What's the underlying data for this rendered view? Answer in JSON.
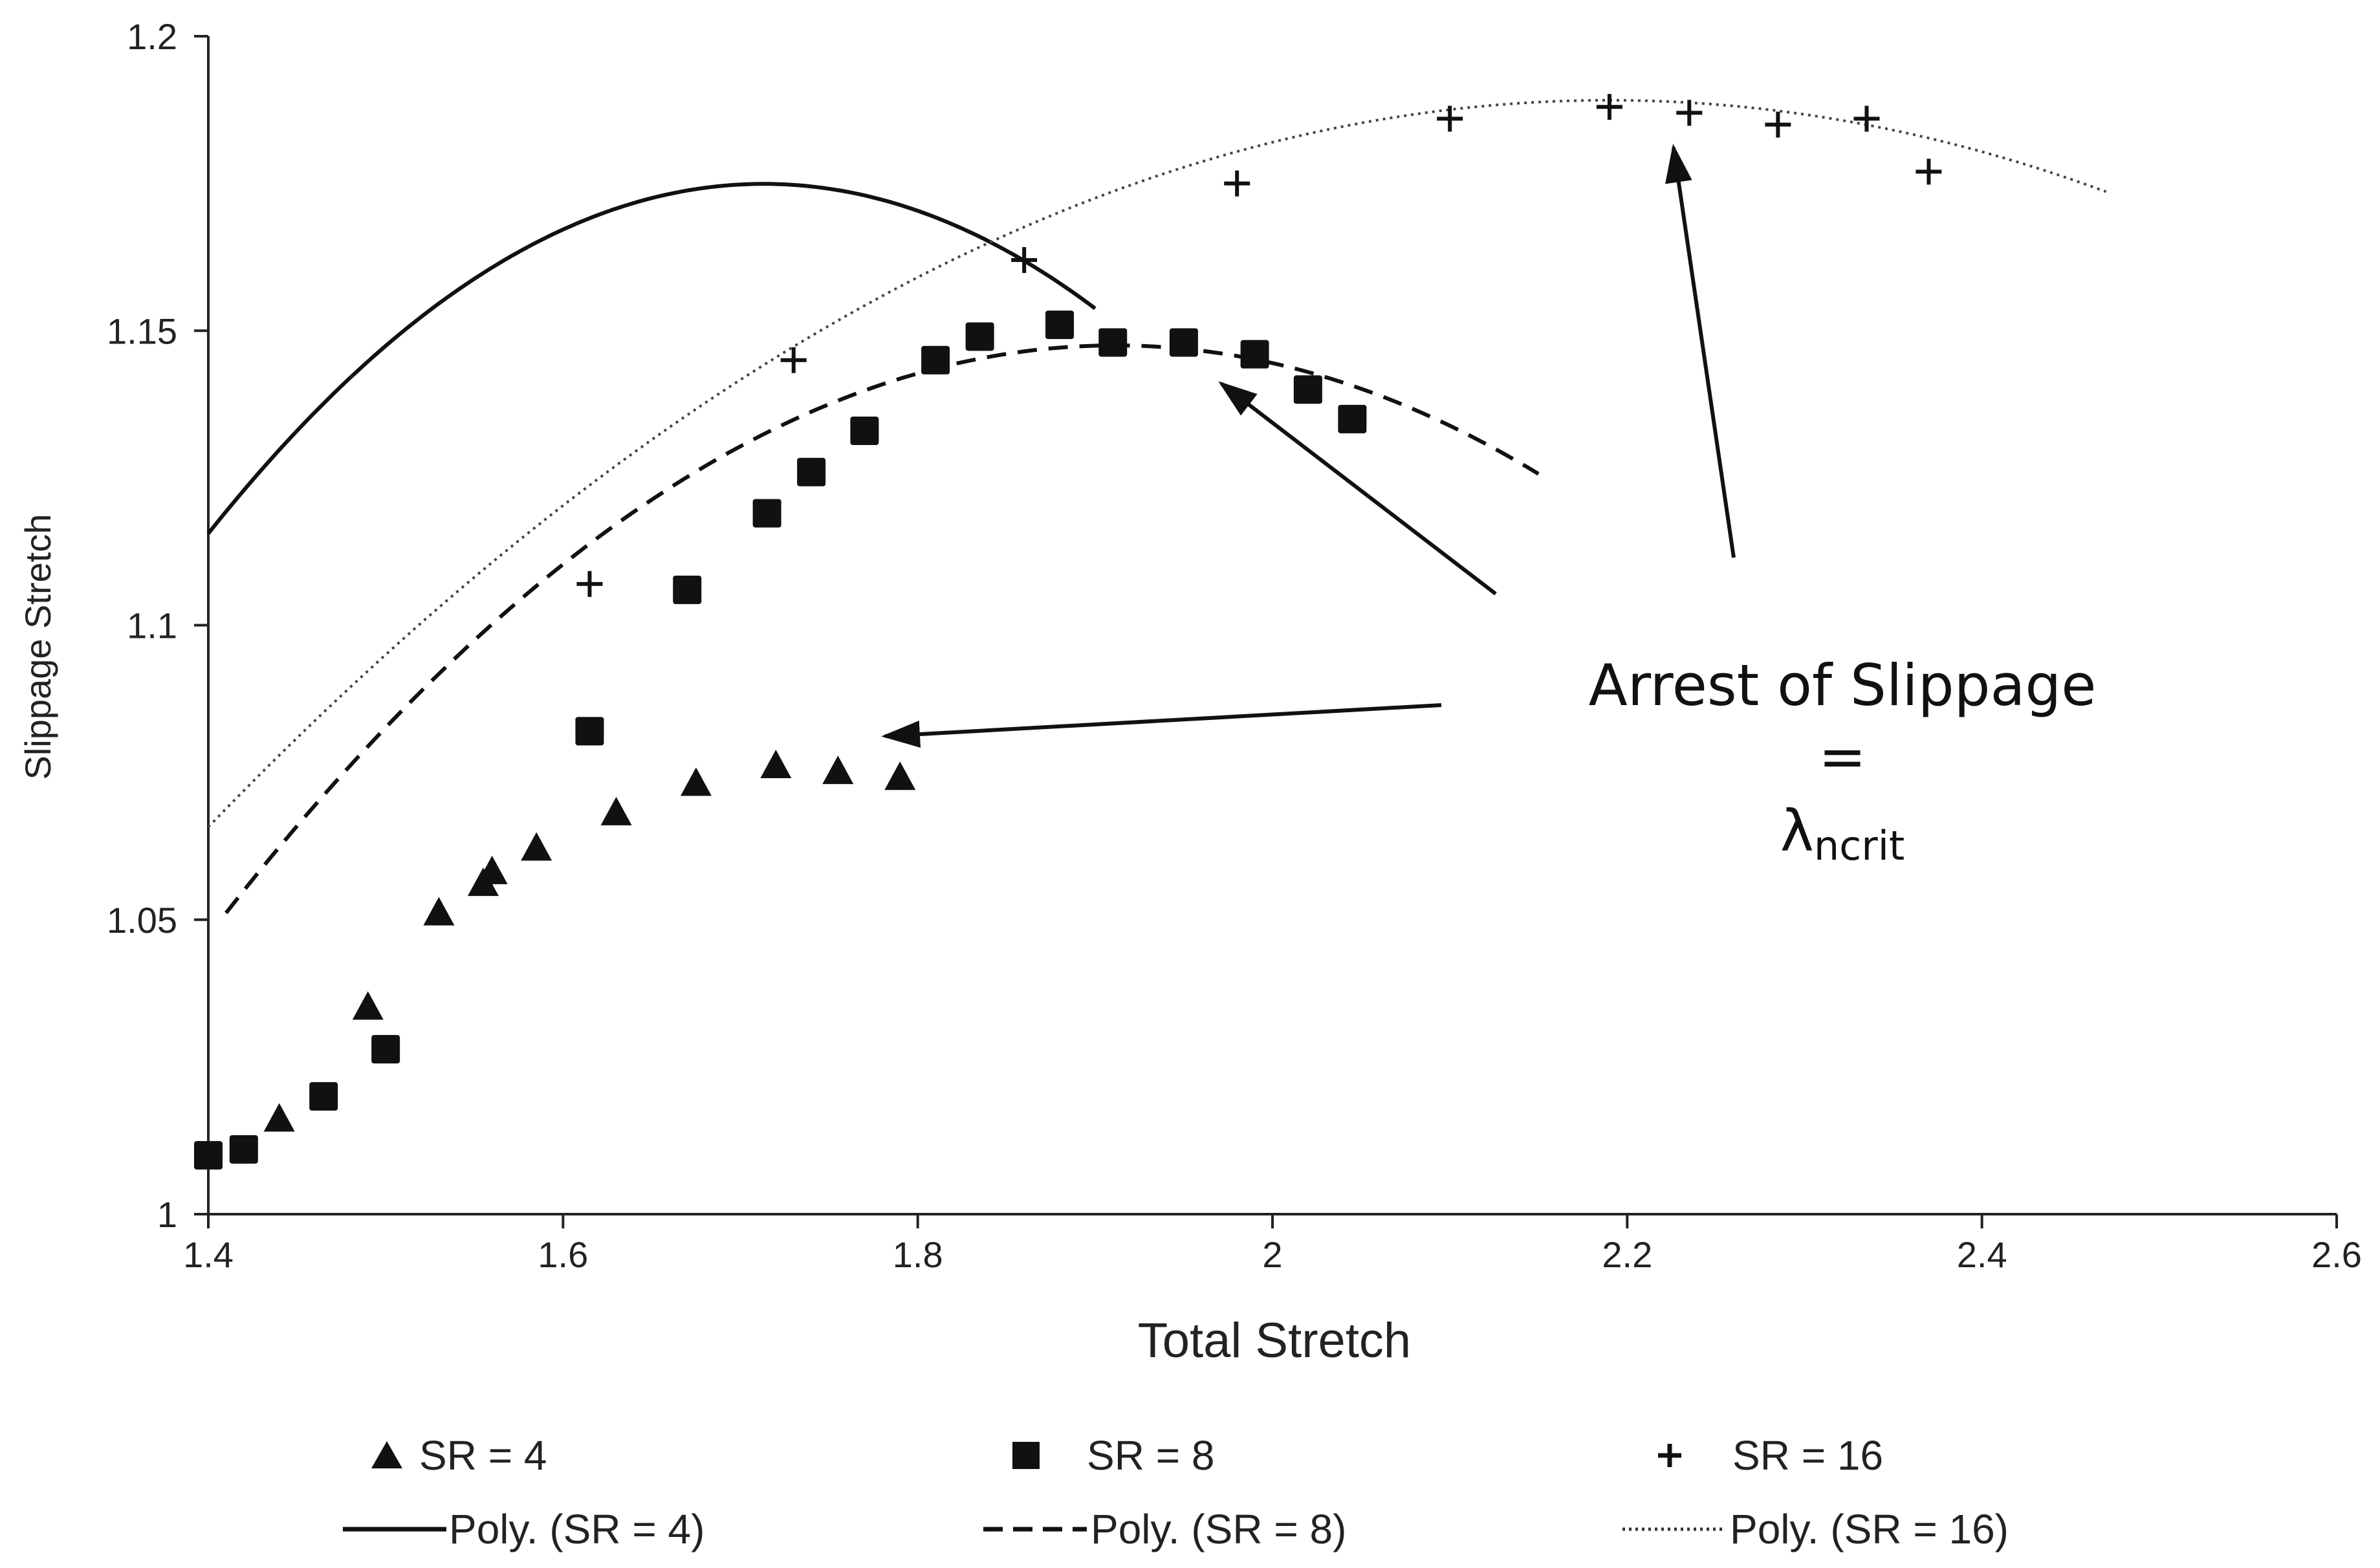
{
  "chart_data": {
    "type": "scatter",
    "title": "",
    "xlabel": "Total Stretch",
    "ylabel": "Slippage Stretch",
    "xlim": [
      1.4,
      2.6
    ],
    "ylim": [
      1.0,
      1.2
    ],
    "xticks": [
      "1.4",
      "1.6",
      "1.8",
      "2",
      "2.2",
      "2.4",
      "2.6"
    ],
    "yticks": [
      "1",
      "1.05",
      "1.1",
      "1.15",
      "1.2"
    ],
    "series": [
      {
        "name": "SR = 4",
        "marker": "triangle",
        "x": [
          1.44,
          1.49,
          1.53,
          1.555,
          1.56,
          1.585,
          1.63,
          1.675,
          1.72,
          1.755,
          1.79
        ],
        "y": [
          1.016,
          1.035,
          1.051,
          1.056,
          1.058,
          1.062,
          1.068,
          1.073,
          1.076,
          1.075,
          1.074
        ]
      },
      {
        "name": "SR = 8",
        "marker": "square",
        "x": [
          1.4,
          1.42,
          1.465,
          1.5,
          1.615,
          1.67,
          1.715,
          1.74,
          1.77,
          1.81,
          1.835,
          1.88,
          1.91,
          1.95,
          1.99,
          2.02,
          2.045
        ],
        "y": [
          1.01,
          1.011,
          1.02,
          1.028,
          1.082,
          1.106,
          1.119,
          1.126,
          1.133,
          1.145,
          1.149,
          1.151,
          1.148,
          1.148,
          1.146,
          1.14,
          1.135
        ]
      },
      {
        "name": "SR = 16",
        "marker": "plus",
        "x": [
          1.615,
          1.73,
          1.86,
          1.98,
          2.1,
          2.19,
          2.235,
          2.285,
          2.335,
          2.37
        ],
        "y": [
          1.107,
          1.145,
          1.162,
          1.175,
          1.186,
          1.188,
          1.187,
          1.185,
          1.186,
          1.177
        ]
      }
    ],
    "trendlines": [
      {
        "name": "Poly. (SR = 4)",
        "style": "solid",
        "x_range": [
          1.4,
          1.9
        ],
        "coef": [
          -0.6055,
          2.0746,
          -0.6021
        ]
      },
      {
        "name": "Poly. (SR = 8)",
        "style": "dashed",
        "x_range": [
          1.41,
          2.15
        ],
        "coef": [
          -0.3833,
          1.4653,
          -0.2529
        ]
      },
      {
        "name": "Poly. (SR = 16)",
        "style": "dotted",
        "x_range": [
          1.4,
          2.47
        ],
        "coef": [
          -0.1978,
          0.8663,
          0.2406
        ]
      }
    ],
    "annotation": {
      "line1": "Arrest of Slippage",
      "line2": "=",
      "symbol": "λ",
      "subscript": "ncrit"
    },
    "legend_position": "bottom"
  }
}
